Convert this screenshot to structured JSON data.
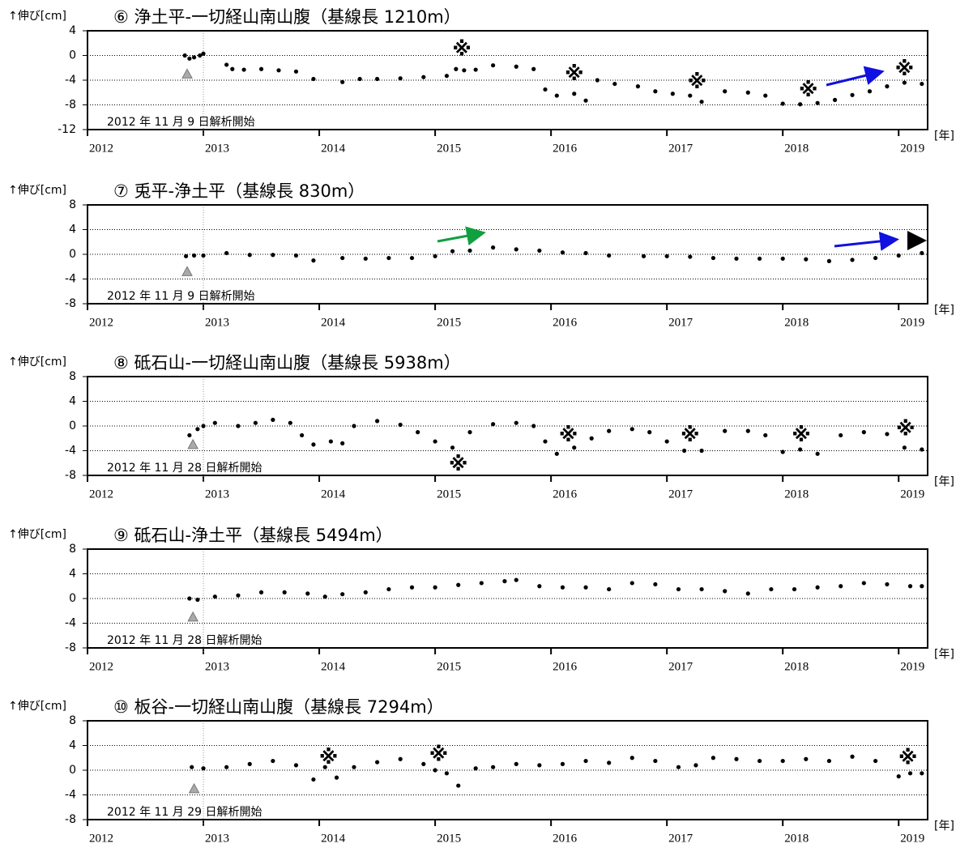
{
  "chart_data": [
    {
      "type": "scatter",
      "title": "⑥ 浄土平-一切経山南山腹（基線長 1210m）",
      "y_label": "↑伸び[cm]",
      "x_unit": "[年]",
      "start_label": "2012 年 11 月 9 日解析開始",
      "color": "#000000",
      "grid": true,
      "xlim": [
        2012,
        2019.25
      ],
      "xticks": [
        2012,
        2013,
        2014,
        2015,
        2016,
        2017,
        2018,
        2019
      ],
      "ylim": [
        -12,
        4
      ],
      "yticks": [
        -12,
        -8,
        -4,
        0,
        4
      ],
      "vlines": [
        2013
      ],
      "start_marker": {
        "x": 2012.86,
        "y": -3
      },
      "x": [
        2012.84,
        2012.88,
        2012.92,
        2012.97,
        2013.0,
        2013.2,
        2013.25,
        2013.35,
        2013.5,
        2013.65,
        2013.8,
        2013.95,
        2014.2,
        2014.35,
        2014.5,
        2014.7,
        2014.9,
        2015.1,
        2015.18,
        2015.25,
        2015.35,
        2015.5,
        2015.7,
        2015.85,
        2015.95,
        2016.05,
        2016.2,
        2016.3,
        2016.4,
        2016.55,
        2016.75,
        2016.9,
        2017.05,
        2017.2,
        2017.3,
        2017.5,
        2017.7,
        2017.85,
        2018.0,
        2018.15,
        2018.3,
        2018.45,
        2018.6,
        2018.75,
        2018.9,
        2019.05,
        2019.2
      ],
      "values": [
        0,
        -0.5,
        -0.3,
        0,
        0.3,
        -1.5,
        -2.2,
        -2.3,
        -2.2,
        -2.4,
        -2.6,
        -3.8,
        -4.3,
        -3.8,
        -3.8,
        -3.7,
        -3.5,
        -3.3,
        -2.2,
        -2.4,
        -2.3,
        -1.6,
        -1.8,
        -2.2,
        -5.5,
        -6.5,
        -6.2,
        -7.3,
        -4,
        -4.6,
        -5,
        -5.8,
        -6.2,
        -6.5,
        -7.5,
        -5.8,
        -6,
        -6.5,
        -7.8,
        -7.9,
        -7.7,
        -7.2,
        -6.4,
        -5.8,
        -5,
        -4.4,
        -4.6
      ],
      "annotations": [
        {
          "text": "※",
          "x": 2015.23,
          "y": 0.9
        },
        {
          "text": "※",
          "x": 2016.2,
          "y": -3.1
        },
        {
          "text": "※",
          "x": 2017.26,
          "y": -4.4
        },
        {
          "text": "※",
          "x": 2018.22,
          "y": -5.7
        },
        {
          "text": "※",
          "x": 2019.05,
          "y": -2.3
        }
      ]
    },
    {
      "type": "scatter",
      "title": "⑦ 兎平-浄土平（基線長 830m）",
      "y_label": "↑伸び[cm]",
      "x_unit": "[年]",
      "start_label": "2012 年 11 月 9 日解析開始",
      "color": "#000000",
      "grid": true,
      "xlim": [
        2012,
        2019.25
      ],
      "xticks": [
        2012,
        2013,
        2014,
        2015,
        2016,
        2017,
        2018,
        2019
      ],
      "ylim": [
        -8,
        8
      ],
      "yticks": [
        -8,
        -4,
        0,
        4,
        8
      ],
      "vlines": [
        2013
      ],
      "start_marker": {
        "x": 2012.86,
        "y": -2.8
      },
      "x": [
        2012.85,
        2012.92,
        2013.0,
        2013.2,
        2013.4,
        2013.6,
        2013.8,
        2013.95,
        2014.2,
        2014.4,
        2014.6,
        2014.8,
        2015.0,
        2015.15,
        2015.3,
        2015.5,
        2015.7,
        2015.9,
        2016.1,
        2016.3,
        2016.5,
        2016.8,
        2017.0,
        2017.2,
        2017.4,
        2017.6,
        2017.8,
        2018.0,
        2018.2,
        2018.4,
        2018.6,
        2018.8,
        2019.0,
        2019.2
      ],
      "values": [
        -0.3,
        -0.2,
        -0.2,
        0.2,
        -0.1,
        -0.1,
        -0.2,
        -1,
        -0.6,
        -0.7,
        -0.6,
        -0.6,
        -0.3,
        0.5,
        0.6,
        1.1,
        0.8,
        0.6,
        0.3,
        0.2,
        -0.2,
        -0.3,
        -0.3,
        -0.4,
        -0.6,
        -0.7,
        -0.7,
        -0.7,
        -0.8,
        -1.1,
        -0.9,
        -0.6,
        -0.2,
        0.2
      ],
      "annotations": []
    },
    {
      "type": "scatter",
      "title": "⑧ 砥石山-一切経山南山腹（基線長 5938m）",
      "y_label": "↑伸び[cm]",
      "x_unit": "[年]",
      "start_label": "2012 年 11 月 28 日解析開始",
      "color": "#000000",
      "grid": true,
      "xlim": [
        2012,
        2019.25
      ],
      "xticks": [
        2012,
        2013,
        2014,
        2015,
        2016,
        2017,
        2018,
        2019
      ],
      "ylim": [
        -8,
        8
      ],
      "yticks": [
        -8,
        -4,
        0,
        4,
        8
      ],
      "vlines": [
        2013
      ],
      "start_marker": {
        "x": 2012.91,
        "y": -3
      },
      "x": [
        2012.88,
        2012.95,
        2013.0,
        2013.1,
        2013.3,
        2013.45,
        2013.6,
        2013.75,
        2013.85,
        2013.95,
        2014.1,
        2014.2,
        2014.3,
        2014.5,
        2014.7,
        2014.85,
        2015.0,
        2015.15,
        2015.3,
        2015.5,
        2015.7,
        2015.85,
        2015.95,
        2016.05,
        2016.2,
        2016.35,
        2016.5,
        2016.7,
        2016.85,
        2017.0,
        2017.15,
        2017.3,
        2017.5,
        2017.7,
        2017.85,
        2018.0,
        2018.15,
        2018.3,
        2018.5,
        2018.7,
        2018.9,
        2019.05,
        2019.2
      ],
      "values": [
        -1.5,
        -0.5,
        0,
        0.5,
        0,
        0.5,
        1,
        0.5,
        -1.5,
        -3,
        -2.5,
        -2.8,
        0,
        0.8,
        0.2,
        -1,
        -2.5,
        -3.5,
        -1,
        0.3,
        0.5,
        0,
        -2.5,
        -4.5,
        -3.5,
        -2,
        -0.8,
        -0.5,
        -1,
        -2.5,
        -4,
        -4,
        -0.8,
        -0.8,
        -1.5,
        -4.2,
        -3.8,
        -4.5,
        -1.5,
        -1,
        -1.3,
        -3.5,
        -3.8
      ],
      "annotations": [
        {
          "text": "※",
          "x": 2016.15,
          "y": -1.6
        },
        {
          "text": "※",
          "x": 2015.2,
          "y": -6.3
        },
        {
          "text": "※",
          "x": 2017.2,
          "y": -1.6
        },
        {
          "text": "※",
          "x": 2018.16,
          "y": -1.6
        },
        {
          "text": "※",
          "x": 2019.06,
          "y": -0.6
        }
      ]
    },
    {
      "type": "scatter",
      "title": "⑨ 砥石山-浄土平（基線長 5494m）",
      "y_label": "↑伸び[cm]",
      "x_unit": "[年]",
      "start_label": "2012 年 11 月 28 日解析開始",
      "color": "#000000",
      "grid": true,
      "xlim": [
        2012,
        2019.25
      ],
      "xticks": [
        2012,
        2013,
        2014,
        2015,
        2016,
        2017,
        2018,
        2019
      ],
      "ylim": [
        -8,
        8
      ],
      "yticks": [
        -8,
        -4,
        0,
        4,
        8
      ],
      "vlines": [
        2013
      ],
      "start_marker": {
        "x": 2012.91,
        "y": -3
      },
      "x": [
        2012.88,
        2012.95,
        2013.1,
        2013.3,
        2013.5,
        2013.7,
        2013.9,
        2014.05,
        2014.2,
        2014.4,
        2014.6,
        2014.8,
        2015.0,
        2015.2,
        2015.4,
        2015.6,
        2015.7,
        2015.9,
        2016.1,
        2016.3,
        2016.5,
        2016.7,
        2016.9,
        2017.1,
        2017.3,
        2017.5,
        2017.7,
        2017.9,
        2018.1,
        2018.3,
        2018.5,
        2018.7,
        2018.9,
        2019.1,
        2019.2
      ],
      "values": [
        0,
        -0.2,
        0.3,
        0.5,
        1,
        1,
        0.8,
        0.3,
        0.7,
        1,
        1.5,
        1.8,
        1.8,
        2.2,
        2.5,
        2.8,
        3,
        2,
        1.8,
        1.8,
        1.5,
        2.5,
        2.3,
        1.5,
        1.5,
        1.2,
        0.8,
        1.5,
        1.5,
        1.8,
        2,
        2.5,
        2.3,
        2,
        2
      ],
      "annotations": []
    },
    {
      "type": "scatter",
      "title": "⑩ 板谷-一切経山南山腹（基線長 7294m）",
      "y_label": "↑伸び[cm]",
      "x_unit": "[年]",
      "start_label": "2012 年 11 月 29 日解析開始",
      "color": "#000000",
      "grid": true,
      "xlim": [
        2012,
        2019.25
      ],
      "xticks": [
        2012,
        2013,
        2014,
        2015,
        2016,
        2017,
        2018,
        2019
      ],
      "ylim": [
        -8,
        8
      ],
      "yticks": [
        -8,
        -4,
        0,
        4,
        8
      ],
      "vlines": [
        2013
      ],
      "start_marker": {
        "x": 2012.92,
        "y": -3
      },
      "x": [
        2012.9,
        2013.0,
        2013.2,
        2013.4,
        2013.6,
        2013.8,
        2013.95,
        2014.05,
        2014.15,
        2014.3,
        2014.5,
        2014.7,
        2014.9,
        2015.0,
        2015.1,
        2015.2,
        2015.35,
        2015.5,
        2015.7,
        2015.9,
        2016.1,
        2016.3,
        2016.5,
        2016.7,
        2016.9,
        2017.1,
        2017.25,
        2017.4,
        2017.6,
        2017.8,
        2018.0,
        2018.2,
        2018.4,
        2018.6,
        2018.8,
        2019.0,
        2019.1,
        2019.2
      ],
      "values": [
        0.5,
        0.3,
        0.5,
        1,
        1.5,
        0.8,
        -1.5,
        0.5,
        -1.2,
        0.5,
        1.3,
        1.8,
        1,
        0,
        -0.5,
        -2.5,
        0.3,
        0.5,
        1,
        0.8,
        1,
        1.5,
        1.2,
        2,
        1.5,
        0.5,
        0.8,
        2,
        1.8,
        1.5,
        1.5,
        1.8,
        1.5,
        2.2,
        1.5,
        -1,
        -0.5,
        -0.5
      ],
      "annotations": [
        {
          "text": "※",
          "x": 2014.08,
          "y": 2
        },
        {
          "text": "※",
          "x": 2015.03,
          "y": 2.4
        },
        {
          "text": "※",
          "x": 2019.08,
          "y": 1.9
        }
      ]
    }
  ]
}
